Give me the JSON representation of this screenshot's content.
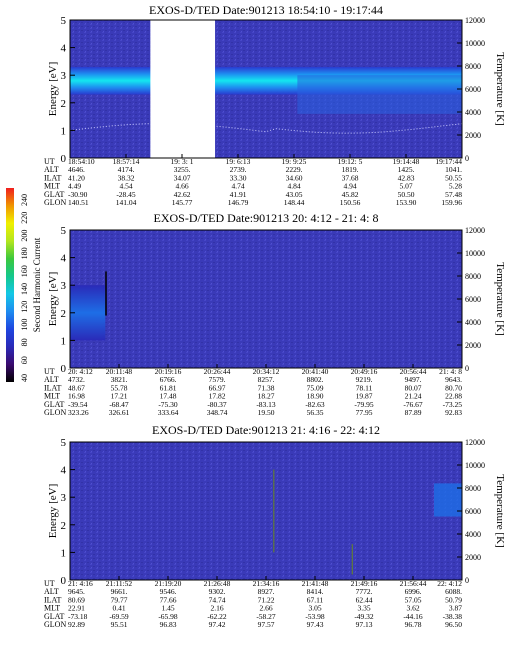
{
  "panels": [
    {
      "title": "EXOS-D/TED    Date:901213  18:54:10 - 19:17:44",
      "time_cols": [
        "18:54:10",
        "18:57:14",
        "19: 3: 1",
        "19: 6:13",
        "19: 9:25",
        "19:12: 5",
        "19:14:48",
        "19:17:44"
      ],
      "rows": [
        {
          "label": "UT",
          "values": [
            "",
            "",
            "",
            "",
            "",
            "",
            "",
            ""
          ]
        },
        {
          "label": "ALT",
          "values": [
            "4646.",
            "4174.",
            "3255.",
            "2739.",
            "2229.",
            "1819.",
            "1425.",
            "1041."
          ]
        },
        {
          "label": "ILAT",
          "values": [
            "41.20",
            "38.32",
            "34.07",
            "33.30",
            "34.60",
            "37.68",
            "42.83",
            "50.55"
          ]
        },
        {
          "label": "MLT",
          "values": [
            "4.49",
            "4.54",
            "4.66",
            "4.74",
            "4.84",
            "4.94",
            "5.07",
            "5.28"
          ]
        },
        {
          "label": "GLAT",
          "values": [
            "-30.90",
            "-28.45",
            "42.62",
            "41.91",
            "43.05",
            "45.82",
            "50.50",
            "57.48"
          ]
        },
        {
          "label": "GLON",
          "values": [
            "140.51",
            "141.04",
            "145.77",
            "146.79",
            "148.44",
            "150.56",
            "153.90",
            "159.96"
          ]
        }
      ],
      "gap": true,
      "band": "strong"
    },
    {
      "title": "EXOS-D/TED   Date:901213  20: 4:12 - 21: 4: 8",
      "time_cols": [
        "20: 4:12",
        "20:11:48",
        "20:19:16",
        "20:26:44",
        "20:34:12",
        "20:41:40",
        "20:49:16",
        "20:56:44",
        "21: 4: 8"
      ],
      "rows": [
        {
          "label": "UT",
          "values": [
            "",
            "",
            "",
            "",
            "",
            "",
            "",
            "",
            ""
          ]
        },
        {
          "label": "ALT",
          "values": [
            "4732.",
            "3821.",
            "6766.",
            "7579.",
            "8257.",
            "8802.",
            "9219.",
            "9497.",
            "9643."
          ]
        },
        {
          "label": "ILAT",
          "values": [
            "48.67",
            "55.78",
            "61.81",
            "66.97",
            "71.38",
            "75.09",
            "78.11",
            "80.07",
            "80.70"
          ]
        },
        {
          "label": "MLT",
          "values": [
            "16.98",
            "17.21",
            "17.48",
            "17.82",
            "18.27",
            "18.90",
            "19.87",
            "21.24",
            "22.88"
          ]
        },
        {
          "label": "GLAT",
          "values": [
            "-39.54",
            "-68.47",
            "-75.30",
            "-80.37",
            "-83.13",
            "-82.63",
            "-79.95",
            "-76.67",
            "-73.25"
          ]
        },
        {
          "label": "GLON",
          "values": [
            "323.26",
            "326.61",
            "333.64",
            "348.74",
            "19.50",
            "56.35",
            "77.95",
            "87.89",
            "92.83"
          ]
        }
      ],
      "gap": false,
      "band": "weak"
    },
    {
      "title": "EXOS-D/TED   Date:901213  21: 4:16 - 22: 4:12",
      "time_cols": [
        "21: 4:16",
        "21:11:52",
        "21:19:20",
        "21:26:48",
        "21:34:16",
        "21:41:48",
        "21:49:16",
        "21:56:44",
        "22: 4:12"
      ],
      "rows": [
        {
          "label": "UT",
          "values": [
            "",
            "",
            "",
            "",
            "",
            "",
            "",
            "",
            ""
          ]
        },
        {
          "label": "ALT",
          "values": [
            "9645.",
            "9661.",
            "9546.",
            "9302.",
            "8927.",
            "8414.",
            "7772.",
            "6996.",
            "6088."
          ]
        },
        {
          "label": "ILAT",
          "values": [
            "80.69",
            "79.77",
            "77.66",
            "74.74",
            "71.22",
            "67.11",
            "62.44",
            "57.05",
            "50.79"
          ]
        },
        {
          "label": "MLT",
          "values": [
            "22.91",
            "0.41",
            "1.45",
            "2.16",
            "2.66",
            "3.05",
            "3.35",
            "3.62",
            "3.87"
          ]
        },
        {
          "label": "GLAT",
          "values": [
            "-73.18",
            "-69.59",
            "-65.98",
            "-62.22",
            "-58.27",
            "-53.98",
            "-49.32",
            "-44.16",
            "-38.38"
          ]
        },
        {
          "label": "GLON",
          "values": [
            "92.89",
            "95.51",
            "96.83",
            "97.42",
            "97.57",
            "97.43",
            "97.13",
            "96.78",
            "96.50"
          ]
        }
      ],
      "gap": false,
      "band": "none"
    }
  ],
  "axis": {
    "ylabel_left": "Energy [eV]",
    "ylabel_right": "Temperature [K]",
    "left_ticks": [
      "0",
      "1",
      "2",
      "3",
      "4",
      "5"
    ],
    "right_ticks": [
      "0",
      "2000",
      "4000",
      "6000",
      "8000",
      "10000",
      "12000"
    ]
  },
  "colorbar": {
    "label": "Second Harmonic Current",
    "ticks": [
      "40",
      "60",
      "80",
      "100",
      "120",
      "140",
      "160",
      "180",
      "200",
      "220",
      "240"
    ],
    "stops": [
      "#000000",
      "#3a0a6e",
      "#2a2ab8",
      "#1e46e0",
      "#1e8cf0",
      "#14c8e6",
      "#14c88c",
      "#3cc83c",
      "#b4e61e",
      "#f0f000",
      "#f09600",
      "#f01e1e"
    ]
  },
  "chart_data": [
    {
      "type": "heatmap",
      "title": "EXOS-D/TED    Date:901213  18:54:10 - 19:17:44",
      "ylabel": "Energy [eV]",
      "ylabel_right": "Temperature [K]",
      "ylim": [
        0,
        5
      ],
      "ylim_right": [
        0,
        12000
      ],
      "x": [
        "18:54:10",
        "18:57:14",
        "19: 3: 1",
        "19: 6:13",
        "19: 9:25",
        "19:12: 5",
        "19:14:48",
        "19:17:44"
      ],
      "colorbar_range": [
        40,
        240
      ]
    },
    {
      "type": "heatmap",
      "title": "EXOS-D/TED   Date:901213  20: 4:12 - 21: 4: 8",
      "ylabel": "Energy [eV]",
      "ylabel_right": "Temperature [K]",
      "ylim": [
        0,
        5
      ],
      "ylim_right": [
        0,
        12000
      ],
      "x": [
        "20: 4:12",
        "20:11:48",
        "20:19:16",
        "20:26:44",
        "20:34:12",
        "20:41:40",
        "20:49:16",
        "20:56:44",
        "21: 4: 8"
      ],
      "colorbar_range": [
        40,
        240
      ]
    },
    {
      "type": "heatmap",
      "title": "EXOS-D/TED   Date:901213  21: 4:16 - 22: 4:12",
      "ylabel": "Energy [eV]",
      "ylabel_right": "Temperature [K]",
      "ylim": [
        0,
        5
      ],
      "ylim_right": [
        0,
        12000
      ],
      "x": [
        "21: 4:16",
        "21:11:52",
        "21:19:20",
        "21:26:48",
        "21:34:16",
        "21:41:48",
        "21:49:16",
        "21:56:44",
        "22: 4:12"
      ],
      "colorbar_range": [
        40,
        240
      ]
    }
  ]
}
